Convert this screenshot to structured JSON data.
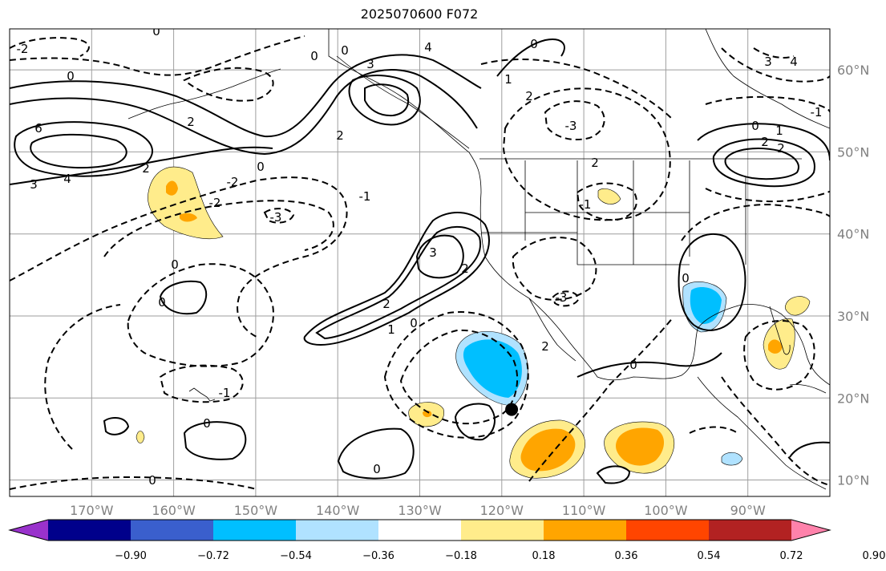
{
  "title": "2025070600 F072",
  "map": {
    "lon_range": [
      -180,
      -80
    ],
    "lat_range": [
      8,
      65
    ],
    "lon_ticks": [
      {
        "value": -170,
        "label": "170°W"
      },
      {
        "value": -160,
        "label": "160°W"
      },
      {
        "value": -150,
        "label": "150°W"
      },
      {
        "value": -140,
        "label": "140°W"
      },
      {
        "value": -130,
        "label": "130°W"
      },
      {
        "value": -120,
        "label": "120°W"
      },
      {
        "value": -110,
        "label": "110°W"
      },
      {
        "value": -100,
        "label": "100°W"
      },
      {
        "value": -90,
        "label": "90°W"
      }
    ],
    "lat_ticks": [
      {
        "value": 60,
        "label": "60°N"
      },
      {
        "value": 50,
        "label": "50°N"
      },
      {
        "value": 40,
        "label": "40°N"
      },
      {
        "value": 30,
        "label": "30°N"
      },
      {
        "value": 20,
        "label": "20°N"
      },
      {
        "value": 10,
        "label": "10°N"
      }
    ],
    "grid": true,
    "marker": {
      "lon": -118.8,
      "lat": 18.6,
      "color": "#000000"
    },
    "contour_labels": [
      "-2",
      "-1",
      "0",
      "2",
      "3",
      "4",
      "6",
      "1",
      "-3"
    ]
  },
  "colorbar": {
    "ticks": [
      "−0.90",
      "−0.72",
      "−0.54",
      "−0.36",
      "−0.18",
      "0.18",
      "0.36",
      "0.54",
      "0.72",
      "0.90"
    ],
    "colors": [
      "#9932cc",
      "#00008b",
      "#3a5fcd",
      "#00bfff",
      "#b0e2ff",
      "#ffffff",
      "#ffec8b",
      "#ffa500",
      "#ff4500",
      "#b22222",
      "#ff82ab"
    ]
  }
}
